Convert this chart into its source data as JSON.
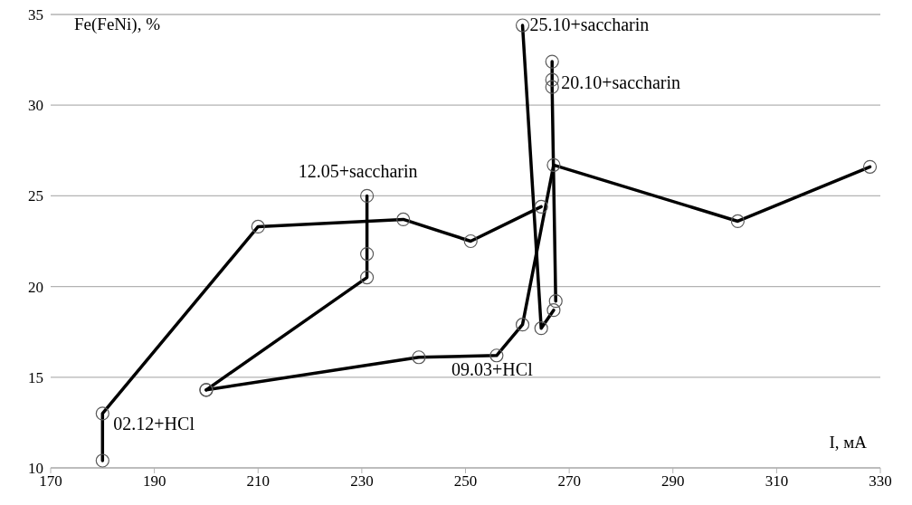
{
  "chart_data": {
    "type": "line",
    "xlabel": "I, мА",
    "ylabel": "Fe(FeNi), %",
    "xlim": [
      170,
      330
    ],
    "xticks": [
      170,
      190,
      210,
      230,
      250,
      270,
      290,
      310,
      330
    ],
    "ylim": [
      10,
      35
    ],
    "yticks": [
      10,
      15,
      20,
      25,
      30,
      35
    ],
    "grid": "y",
    "marker": "circle",
    "line_style": "solid",
    "series": [
      {
        "name": "02.12+HCl",
        "color": "#000000",
        "x": [
          180,
          180,
          210,
          238,
          251,
          264.6
        ],
        "values": [
          10.4,
          13.0,
          23.3,
          23.7,
          22.5,
          24.4
        ]
      },
      {
        "name": "12.05+saccharin",
        "color": "#000000",
        "x": [
          231,
          231,
          231,
          200
        ],
        "values": [
          25.0,
          21.8,
          20.5,
          14.3
        ]
      },
      {
        "name": "09.03+HCl",
        "color": "#000000",
        "x": [
          200,
          241,
          256,
          261,
          267,
          302.5,
          328
        ],
        "values": [
          14.3,
          16.1,
          16.2,
          17.9,
          26.7,
          23.6,
          26.6
        ]
      },
      {
        "name": "25.10+saccharin",
        "color": "#000000",
        "x": [
          261,
          264.6,
          267
        ],
        "values": [
          34.4,
          17.7,
          18.7
        ]
      },
      {
        "name": "20.10+saccharin",
        "color": "#000000",
        "x": [
          266.7,
          266.7,
          266.7,
          267.4
        ],
        "values": [
          32.4,
          31.4,
          31.0,
          19.2
        ]
      }
    ]
  }
}
